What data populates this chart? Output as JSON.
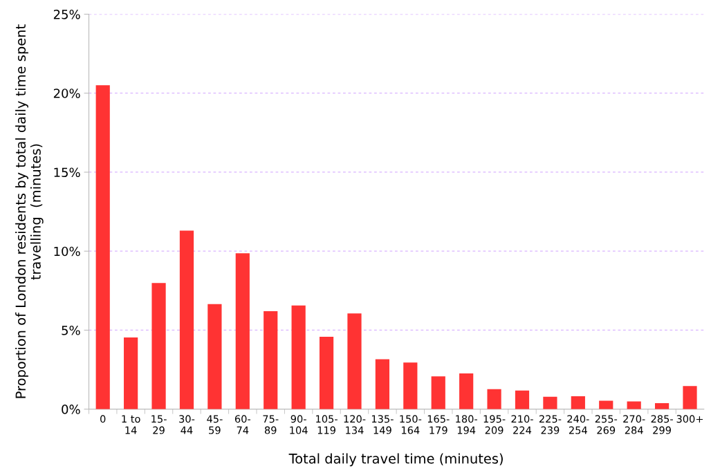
{
  "chart_data": {
    "type": "bar",
    "xlabel": "Total daily travel time (minutes)",
    "ylabel": "Proportion of London residents by total daily time spent travelling  (minutes)",
    "categories": [
      "0",
      "1 to\n14",
      "15-\n29",
      "30-\n44",
      "45-\n59",
      "60-\n74",
      "75-\n89",
      "90-\n104",
      "105-\n119",
      "120-\n134",
      "135-\n149",
      "150-\n164",
      "165-\n179",
      "180-\n194",
      "195-\n209",
      "210-\n224",
      "225-\n239",
      "240-\n254",
      "255-\n269",
      "270-\n284",
      "285-\n299",
      "300+"
    ],
    "values": [
      20.5,
      4.54,
      7.98,
      11.3,
      6.65,
      9.87,
      6.2,
      6.56,
      4.58,
      6.06,
      3.16,
      2.95,
      2.07,
      2.26,
      1.27,
      1.18,
      0.78,
      0.82,
      0.53,
      0.49,
      0.38,
      1.46
    ],
    "color": "#ff3333",
    "ylim": [
      0,
      25
    ],
    "yticks": [
      {
        "value": 0,
        "label": "0%"
      },
      {
        "value": 5,
        "label": "5%"
      },
      {
        "value": 10,
        "label": "10%"
      },
      {
        "value": 15,
        "label": "15%"
      },
      {
        "value": 20,
        "label": "20%"
      },
      {
        "value": 25,
        "label": "25%"
      }
    ],
    "grid": "y",
    "legend": false
  }
}
